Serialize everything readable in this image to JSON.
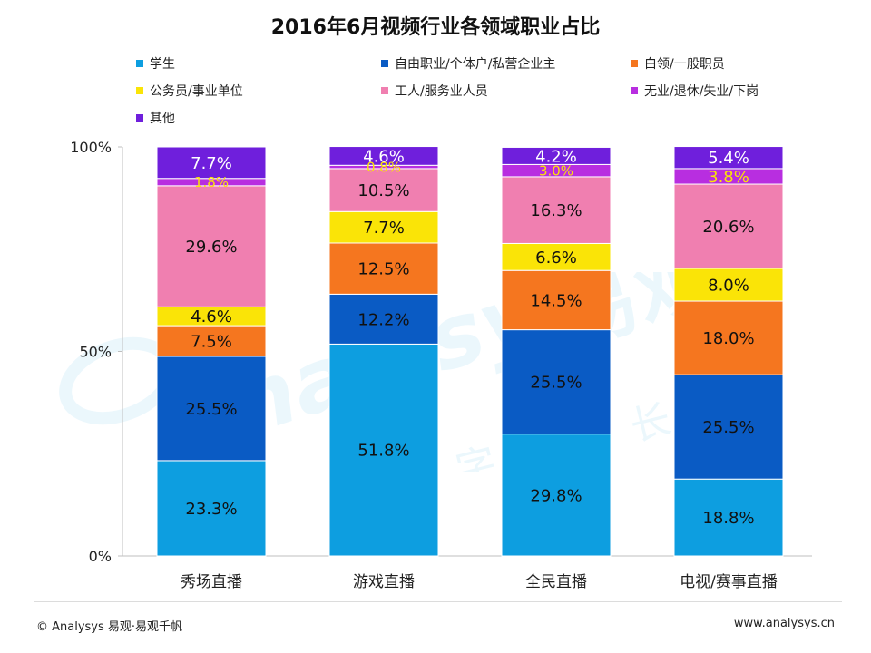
{
  "colors": {
    "student": "#0d9ee0",
    "self_employed": "#0a5bc4",
    "white_collar": "#f5761f",
    "civil_servant": "#fae407",
    "worker": "#f07fb0",
    "unemployed": "#b82ee0",
    "other": "#6f1fdc"
  },
  "watermark": {
    "brand_latin": "Analysys",
    "brand_cn": "易观",
    "slogan": "助力数字化增长"
  },
  "footer": {
    "left": "© Analysys 易观·易观千帆",
    "right": "www.analysys.cn"
  },
  "chart_data": {
    "type": "bar",
    "stacked": true,
    "title": "2016年6月视频行业各领域职业占比",
    "categories": [
      "秀场直播",
      "游戏直播",
      "全民直播",
      "电视/赛事直播"
    ],
    "y_ticks": [
      "0%",
      "50%",
      "100%"
    ],
    "ylim": [
      0,
      100
    ],
    "legend_position": "top",
    "series": [
      {
        "key": "student",
        "name": "学生",
        "values": [
          23.3,
          51.8,
          29.8,
          18.8
        ],
        "labels": [
          "23.3%",
          "51.8%",
          "29.8%",
          "18.8%"
        ]
      },
      {
        "key": "self_employed",
        "name": "自由职业/个体户/私营企业主",
        "values": [
          25.5,
          12.2,
          25.5,
          25.5
        ],
        "labels": [
          "25.5%",
          "12.2%",
          "25.5%",
          "25.5%"
        ]
      },
      {
        "key": "white_collar",
        "name": "白领/一般职员",
        "values": [
          7.5,
          12.5,
          14.5,
          18.0
        ],
        "labels": [
          "7.5%",
          "12.5%",
          "14.5%",
          "18.0%"
        ]
      },
      {
        "key": "civil_servant",
        "name": "公务员/事业单位",
        "values": [
          4.6,
          7.7,
          6.6,
          8.0
        ],
        "labels": [
          "4.6%",
          "7.7%",
          "6.6%",
          "8.0%"
        ]
      },
      {
        "key": "worker",
        "name": "工人/服务业人员",
        "values": [
          29.6,
          10.5,
          16.3,
          20.6
        ],
        "labels": [
          "29.6%",
          "10.5%",
          "16.3%",
          "20.6%"
        ]
      },
      {
        "key": "unemployed",
        "name": "无业/退休/失业/下岗",
        "values": [
          1.8,
          0.8,
          3.0,
          3.8
        ],
        "labels": [
          "1.8%",
          "0.8%",
          "3.0%",
          "3.8%"
        ]
      },
      {
        "key": "other",
        "name": "其他",
        "values": [
          7.7,
          4.6,
          4.2,
          5.4
        ],
        "labels": [
          "7.7%",
          "4.6%",
          "4.2%",
          "5.4%"
        ]
      }
    ]
  }
}
